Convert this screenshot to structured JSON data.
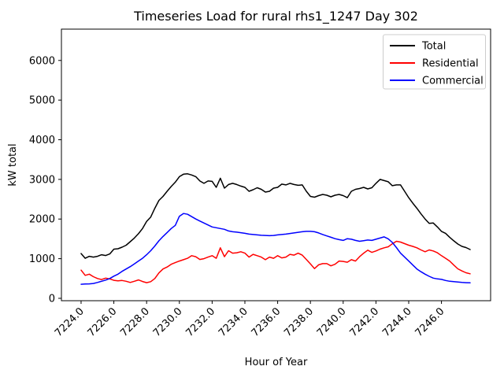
{
  "figure": {
    "background": "#ffffff"
  },
  "chart_data": {
    "type": "line",
    "title": "Timeseries Load for rural rhs1_1247  Day 302",
    "xlabel": "Hour of Year",
    "ylabel": "kW total",
    "xlim": [
      7222.8,
      7249.0
    ],
    "ylim": [
      -60,
      6790
    ],
    "grid": false,
    "xticks": [
      7224,
      7226,
      7228,
      7230,
      7232,
      7234,
      7236,
      7238,
      7240,
      7242,
      7244,
      7246
    ],
    "xtick_labels": [
      "7224.0",
      "7226.0",
      "7228.0",
      "7230.0",
      "7232.0",
      "7234.0",
      "7236.0",
      "7238.0",
      "7240.0",
      "7242.0",
      "7244.0",
      "7246.0"
    ],
    "yticks": [
      0,
      1000,
      2000,
      3000,
      4000,
      5000,
      6000
    ],
    "ytick_labels": [
      "0",
      "1000",
      "2000",
      "3000",
      "4000",
      "5000",
      "6000"
    ],
    "legend": {
      "position": "upper right",
      "border_color": "#cccccc",
      "background": "#ffffff"
    },
    "x": [
      7224.0,
      7224.25,
      7224.5,
      7224.75,
      7225.0,
      7225.25,
      7225.5,
      7225.75,
      7226.0,
      7226.25,
      7226.5,
      7226.75,
      7227.0,
      7227.25,
      7227.5,
      7227.75,
      7228.0,
      7228.25,
      7228.5,
      7228.75,
      7229.0,
      7229.25,
      7229.5,
      7229.75,
      7230.0,
      7230.25,
      7230.5,
      7230.75,
      7231.0,
      7231.25,
      7231.5,
      7231.75,
      7232.0,
      7232.25,
      7232.5,
      7232.75,
      7233.0,
      7233.25,
      7233.5,
      7233.75,
      7234.0,
      7234.25,
      7234.5,
      7234.75,
      7235.0,
      7235.25,
      7235.5,
      7235.75,
      7236.0,
      7236.25,
      7236.5,
      7236.75,
      7237.0,
      7237.25,
      7237.5,
      7237.75,
      7238.0,
      7238.25,
      7238.5,
      7238.75,
      7239.0,
      7239.25,
      7239.5,
      7239.75,
      7240.0,
      7240.25,
      7240.5,
      7240.75,
      7241.0,
      7241.25,
      7241.5,
      7241.75,
      7242.0,
      7242.25,
      7242.5,
      7242.75,
      7243.0,
      7243.25,
      7243.5,
      7243.75,
      7244.0,
      7244.25,
      7244.5,
      7244.75,
      7245.0,
      7245.25,
      7245.5,
      7245.75,
      7246.0,
      7246.25,
      7246.5,
      7246.75,
      7247.0,
      7247.25,
      7247.5,
      7247.75
    ],
    "series": [
      {
        "name": "Total",
        "color": "#000000",
        "values": [
          1130,
          1010,
          1060,
          1040,
          1060,
          1100,
          1080,
          1120,
          1240,
          1250,
          1290,
          1340,
          1430,
          1520,
          1630,
          1760,
          1940,
          2050,
          2270,
          2470,
          2570,
          2700,
          2820,
          2930,
          3070,
          3130,
          3140,
          3110,
          3070,
          2960,
          2900,
          2960,
          2950,
          2800,
          3030,
          2780,
          2870,
          2900,
          2870,
          2830,
          2800,
          2700,
          2740,
          2790,
          2750,
          2680,
          2700,
          2780,
          2800,
          2880,
          2860,
          2900,
          2870,
          2850,
          2860,
          2700,
          2570,
          2550,
          2590,
          2620,
          2600,
          2560,
          2600,
          2620,
          2590,
          2540,
          2700,
          2750,
          2770,
          2800,
          2760,
          2790,
          2900,
          3000,
          2970,
          2940,
          2840,
          2860,
          2860,
          2700,
          2540,
          2400,
          2270,
          2130,
          2000,
          1890,
          1900,
          1800,
          1690,
          1640,
          1540,
          1450,
          1370,
          1310,
          1280,
          1230
        ]
      },
      {
        "name": "Residential",
        "color": "#ff0000",
        "values": [
          710,
          580,
          610,
          545,
          500,
          475,
          510,
          490,
          455,
          440,
          450,
          430,
          400,
          430,
          465,
          425,
          395,
          420,
          500,
          640,
          740,
          790,
          860,
          900,
          940,
          975,
          1010,
          1075,
          1050,
          980,
          1000,
          1040,
          1075,
          1010,
          1275,
          1050,
          1200,
          1140,
          1150,
          1175,
          1140,
          1040,
          1110,
          1075,
          1040,
          975,
          1040,
          1010,
          1075,
          1020,
          1040,
          1110,
          1090,
          1140,
          1090,
          980,
          870,
          750,
          845,
          875,
          875,
          820,
          860,
          940,
          930,
          910,
          975,
          940,
          1050,
          1140,
          1215,
          1160,
          1195,
          1240,
          1275,
          1300,
          1375,
          1440,
          1420,
          1380,
          1340,
          1310,
          1275,
          1220,
          1175,
          1220,
          1195,
          1150,
          1075,
          1010,
          940,
          840,
          745,
          690,
          645,
          620
        ]
      },
      {
        "name": "Commercial",
        "color": "#0000ff",
        "values": [
          355,
          360,
          365,
          375,
          400,
          430,
          460,
          500,
          560,
          610,
          680,
          740,
          800,
          870,
          940,
          1010,
          1100,
          1200,
          1320,
          1450,
          1560,
          1660,
          1760,
          1840,
          2070,
          2140,
          2120,
          2060,
          2000,
          1950,
          1900,
          1850,
          1800,
          1780,
          1760,
          1740,
          1700,
          1680,
          1670,
          1655,
          1640,
          1620,
          1610,
          1600,
          1590,
          1585,
          1580,
          1585,
          1600,
          1610,
          1620,
          1635,
          1650,
          1665,
          1680,
          1690,
          1690,
          1680,
          1650,
          1610,
          1575,
          1540,
          1505,
          1480,
          1460,
          1505,
          1490,
          1460,
          1440,
          1455,
          1470,
          1460,
          1490,
          1520,
          1550,
          1500,
          1410,
          1280,
          1140,
          1040,
          940,
          840,
          740,
          670,
          610,
          555,
          510,
          490,
          478,
          450,
          430,
          420,
          410,
          400,
          395,
          390
        ]
      }
    ]
  }
}
